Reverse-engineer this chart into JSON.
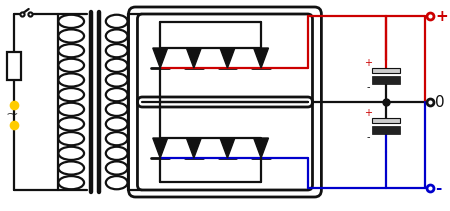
{
  "bg": "#ffffff",
  "black": "#111111",
  "red": "#cc0000",
  "blue": "#0000cc",
  "yellow": "#ffcc00",
  "lw": 1.6,
  "lw_thick": 3.2,
  "lw_med": 2.0
}
